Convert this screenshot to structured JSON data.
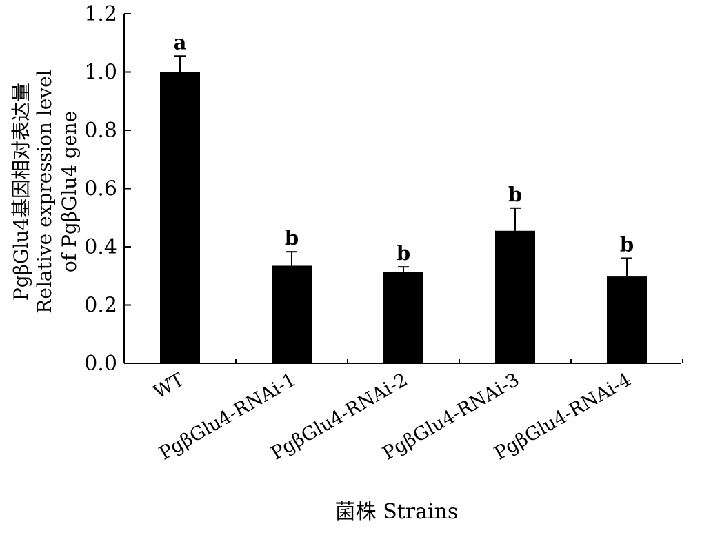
{
  "chart_data": {
    "type": "bar",
    "title": "",
    "xlabel": "菌株 Strains",
    "ylabel_lines": [
      "PgβGlu4基因相对表达量",
      "Relative expression level",
      "of PgβGlu4 gene"
    ],
    "ylim": [
      0,
      1.2
    ],
    "yticks": [
      0.0,
      0.2,
      0.4,
      0.6,
      0.8,
      1.0,
      1.2
    ],
    "ytick_labels": [
      "0.0",
      "0.2",
      "0.4",
      "0.6",
      "0.8",
      "1.0",
      "1.2"
    ],
    "categories": [
      "WT",
      "PgβGlu4-RNAi-1",
      "PgβGlu4-RNAi-2",
      "PgβGlu4-RNAi-3",
      "PgβGlu4-RNAi-4"
    ],
    "values": [
      1.0,
      0.335,
      0.313,
      0.455,
      0.298
    ],
    "errors": [
      0.055,
      0.048,
      0.018,
      0.078,
      0.063
    ],
    "significance": [
      "a",
      "b",
      "b",
      "b",
      "b"
    ],
    "bar_color": "#000000",
    "grid": false,
    "legend": "none"
  }
}
